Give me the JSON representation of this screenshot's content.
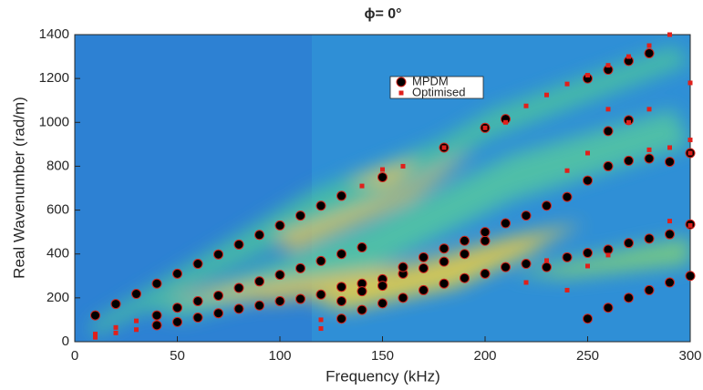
{
  "chart_data": {
    "type": "scatter",
    "title": "ϕ= 0°",
    "x_label": "Frequency (kHz)",
    "y_label": "Real Wavenumber (rad/m)",
    "xlim": [
      0,
      300
    ],
    "xticks": [
      0,
      50,
      100,
      150,
      200,
      250,
      300
    ],
    "ylim": [
      0,
      1400
    ],
    "yticks": [
      0,
      200,
      400,
      600,
      800,
      1000,
      1200,
      1400
    ],
    "legend": "upper center",
    "series": [
      {
        "name": "MPDM",
        "color": "#000000",
        "x": [
          10,
          20,
          30,
          40,
          50,
          60,
          70,
          80,
          90,
          100,
          110,
          120,
          130,
          150,
          180,
          200,
          210,
          250,
          260,
          270,
          280,
          40,
          50,
          60,
          70,
          80,
          90,
          100,
          110,
          120,
          130,
          140,
          40,
          50,
          60,
          70,
          80,
          90,
          100,
          110,
          120,
          130,
          140,
          150,
          160,
          170,
          180,
          190,
          200,
          210,
          220,
          230,
          240,
          250,
          260,
          270,
          280,
          290,
          300,
          130,
          140,
          150,
          160,
          170,
          180,
          190,
          200,
          210,
          220,
          230,
          240,
          250,
          260,
          270,
          280,
          290,
          300,
          130,
          140,
          150,
          160,
          170,
          180,
          190,
          200,
          260,
          270,
          250,
          260,
          270,
          280,
          290,
          300
        ],
        "values": [
          120,
          172,
          218,
          265,
          310,
          355,
          398,
          443,
          487,
          530,
          575,
          620,
          665,
          750,
          885,
          975,
          1015,
          1200,
          1240,
          1280,
          1315,
          120,
          155,
          185,
          210,
          245,
          275,
          305,
          335,
          368,
          400,
          430,
          75,
          90,
          110,
          130,
          150,
          165,
          185,
          195,
          215,
          250,
          265,
          285,
          310,
          335,
          365,
          400,
          460,
          540,
          575,
          620,
          660,
          735,
          800,
          825,
          835,
          820,
          860,
          105,
          145,
          175,
          200,
          235,
          265,
          290,
          310,
          340,
          355,
          340,
          385,
          405,
          420,
          450,
          470,
          490,
          535,
          185,
          230,
          255,
          340,
          385,
          425,
          460,
          500,
          960,
          1010,
          105,
          155,
          200,
          235,
          270,
          300
        ]
      },
      {
        "name": "Optimised",
        "color": "#e0201b",
        "x": [
          10,
          10,
          20,
          20,
          30,
          30,
          120,
          120,
          140,
          150,
          160,
          210,
          220,
          230,
          240,
          250,
          260,
          270,
          280,
          290,
          300,
          260,
          270,
          280,
          290,
          300,
          250,
          240,
          220,
          240,
          250,
          290,
          300,
          180,
          200,
          230,
          300,
          260,
          280
        ],
        "values": [
          20,
          35,
          40,
          65,
          55,
          95,
          60,
          100,
          710,
          785,
          800,
          1000,
          1075,
          1125,
          1175,
          1215,
          1260,
          1300,
          1350,
          1400,
          1180,
          1060,
          1000,
          875,
          885,
          920,
          860,
          780,
          270,
          235,
          345,
          550,
          530,
          885,
          975,
          370,
          860,
          395,
          1060
        ]
      }
    ]
  }
}
